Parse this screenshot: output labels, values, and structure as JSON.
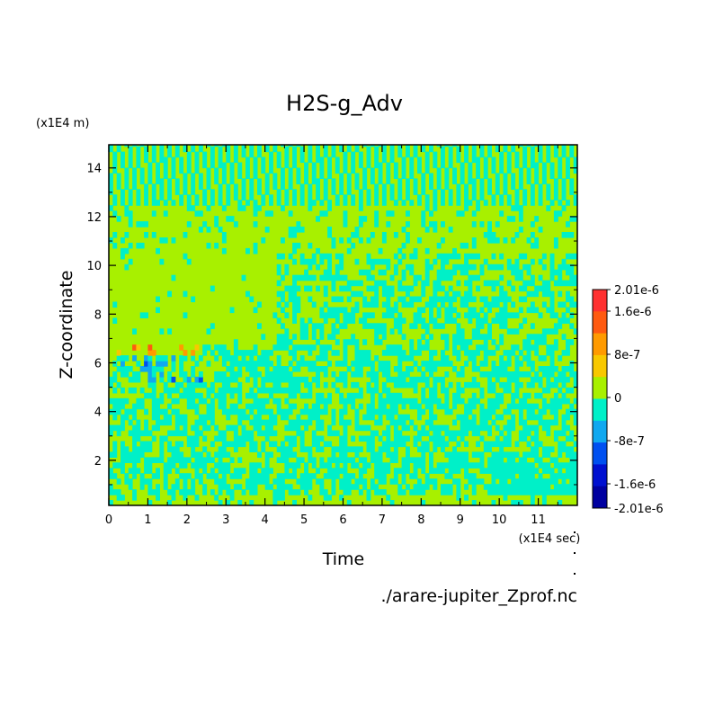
{
  "chart_data": {
    "type": "heatmap",
    "title": "H2S-g_Adv",
    "xlabel": "Time",
    "ylabel": "Z-coordinate",
    "x_unit": "(x1E4 sec)",
    "y_unit": "(x1E4 m)",
    "source_file": "./arare-jupiter_Zprof.nc",
    "xlim": [
      0,
      12
    ],
    "ylim": [
      0.15,
      14.95
    ],
    "x_ticks": [
      "0",
      "1",
      "2",
      "3",
      "4",
      "5",
      "6",
      "7",
      "8",
      "9",
      "10",
      "11"
    ],
    "y_ticks": [
      "2",
      "4",
      "6",
      "8",
      "10",
      "12",
      "14"
    ],
    "colorbar": {
      "labels": [
        "2.01e-6",
        "1.6e-6",
        "8e-7",
        "0",
        "-8e-7",
        "-1.6e-6",
        "-2.01e-6"
      ],
      "colors": [
        "#ff3030",
        "#ff5a10",
        "#ff9a00",
        "#f8c800",
        "#a8f000",
        "#00f0c8",
        "#10a8f0",
        "#0050f0",
        "#0010d0",
        "#0000a0"
      ]
    },
    "regions": [
      {
        "band": "z 12-15",
        "pattern": "alternating 0 / -4e-7 diagonal stripes"
      },
      {
        "band": "z 10.5-12.5",
        "pattern": "mostly 0 with sparse -4e-7 streaks"
      },
      {
        "band": "z 7-10",
        "pattern": "uniform 0 for t<4.5, mixed afterwards"
      },
      {
        "band": "z 6-6.8, t 0.2-2.3",
        "pattern": "positive peaks up to 2.01e-6"
      },
      {
        "band": "z 5-6.3, t 0.2-2.3",
        "pattern": "negative peaks down to -1.6e-6"
      },
      {
        "band": "z 0.5-6",
        "pattern": "vertical streaks of 0 and -4e-7"
      },
      {
        "band": "z 0.5-2, t 10-12",
        "pattern": "broad -4e-7 patch"
      }
    ]
  }
}
